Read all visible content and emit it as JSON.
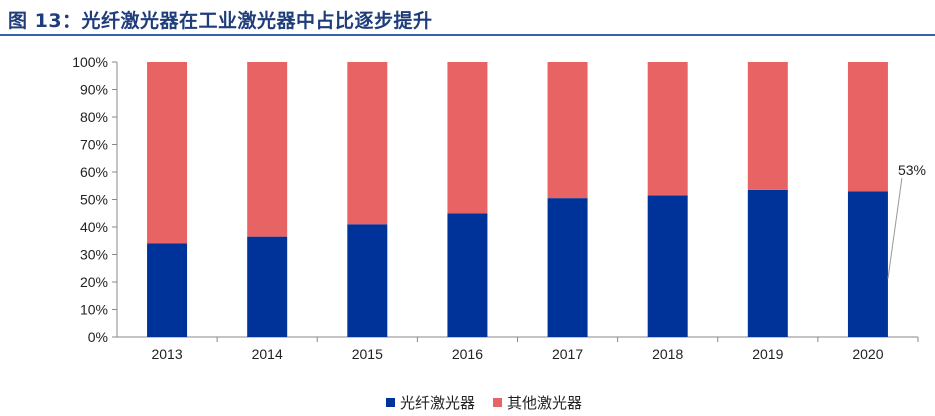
{
  "title": "图 13：光纤激光器在工业激光器中占比逐步提升",
  "chart_data": {
    "type": "bar",
    "stacked": true,
    "categories": [
      "2013",
      "2014",
      "2015",
      "2016",
      "2017",
      "2018",
      "2019",
      "2020"
    ],
    "series": [
      {
        "name": "光纤激光器",
        "color": "#003399",
        "values": [
          34,
          36.5,
          41,
          45,
          50.5,
          51.5,
          53.5,
          53
        ]
      },
      {
        "name": "其他激光器",
        "color": "#e86464",
        "values": [
          66,
          63.5,
          59,
          55,
          49.5,
          48.5,
          46.5,
          47
        ]
      }
    ],
    "ylim": [
      0,
      100
    ],
    "yticks": [
      "0%",
      "10%",
      "20%",
      "30%",
      "40%",
      "50%",
      "60%",
      "70%",
      "80%",
      "90%",
      "100%"
    ],
    "annotation": {
      "text": "53%",
      "category": "2020"
    },
    "legend_position": "bottom"
  }
}
